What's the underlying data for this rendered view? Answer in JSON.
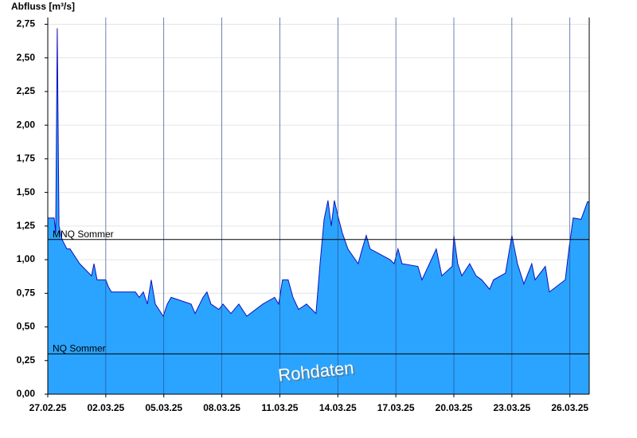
{
  "chart_data": {
    "type": "area",
    "y_label": "Abfluss [m³/s]",
    "annotation": "Rohdaten",
    "color": "#2ba4ff",
    "line_color": "#1010c0",
    "grid": true,
    "x": [
      0,
      0.33,
      0.41,
      0.49,
      0.58,
      0.74,
      0.99,
      1.15,
      1.65,
      2.26,
      2.39,
      2.55,
      3.0,
      3.13,
      3.29,
      4.53,
      4.73,
      4.94,
      5.15,
      5.35,
      5.56,
      5.97,
      6.18,
      6.38,
      7.41,
      7.62,
      8.03,
      8.23,
      8.44,
      8.85,
      9.06,
      9.47,
      9.88,
      10.29,
      11.12,
      11.73,
      11.94,
      12.14,
      12.43,
      12.68,
      12.97,
      13.38,
      13.87,
      14.08,
      14.29,
      14.49,
      14.66,
      14.82,
      15.03,
      15.23,
      15.52,
      16.05,
      16.26,
      16.47,
      16.67,
      17.7,
      17.91,
      18.11,
      18.32,
      19.14,
      19.35,
      20.09,
      20.38,
      20.91,
      21.0,
      21.2,
      21.41,
      21.82,
      22.15,
      22.44,
      22.85,
      23.05,
      23.67,
      24.0,
      24.29,
      24.62,
      25.03,
      25.2,
      25.73,
      25.94,
      26.76,
      26.97,
      27.17,
      27.58,
      27.91,
      28
    ],
    "values": [
      1.31,
      1.31,
      1.2,
      2.72,
      1.25,
      1.15,
      1.08,
      1.08,
      0.97,
      0.88,
      0.97,
      0.85,
      0.85,
      0.8,
      0.76,
      0.76,
      0.72,
      0.76,
      0.67,
      0.85,
      0.67,
      0.58,
      0.67,
      0.72,
      0.67,
      0.6,
      0.72,
      0.76,
      0.67,
      0.63,
      0.67,
      0.6,
      0.67,
      0.58,
      0.67,
      0.72,
      0.67,
      0.85,
      0.85,
      0.72,
      0.63,
      0.67,
      0.6,
      0.97,
      1.3,
      1.44,
      1.25,
      1.44,
      1.31,
      1.2,
      1.08,
      0.97,
      1.08,
      1.18,
      1.08,
      1.0,
      0.97,
      1.08,
      0.97,
      0.95,
      0.85,
      1.08,
      0.88,
      0.95,
      1.18,
      0.97,
      0.88,
      0.97,
      0.88,
      0.85,
      0.78,
      0.85,
      0.9,
      1.18,
      0.97,
      0.82,
      0.97,
      0.85,
      0.95,
      0.76,
      0.85,
      1.1,
      1.31,
      1.3,
      1.43,
      1.43
    ],
    "xlim": [
      0,
      28
    ],
    "xticks": [
      {
        "value": 0,
        "label": "27.02.25"
      },
      {
        "value": 3,
        "label": "02.03.25"
      },
      {
        "value": 6,
        "label": "05.03.25"
      },
      {
        "value": 9,
        "label": "08.03.25"
      },
      {
        "value": 12,
        "label": "11.03.25"
      },
      {
        "value": 15,
        "label": "14.03.25"
      },
      {
        "value": 18,
        "label": "17.03.25"
      },
      {
        "value": 21,
        "label": "20.03.25"
      },
      {
        "value": 24,
        "label": "23.03.25"
      },
      {
        "value": 27,
        "label": "26.03.25"
      }
    ],
    "ylim": [
      0,
      2.8
    ],
    "yticks": [
      {
        "value": 0,
        "label": "0,00"
      },
      {
        "value": 0.25,
        "label": "0,25"
      },
      {
        "value": 0.5,
        "label": "0,50"
      },
      {
        "value": 0.75,
        "label": "0,75"
      },
      {
        "value": 1,
        "label": "1,00"
      },
      {
        "value": 1.25,
        "label": "1,25"
      },
      {
        "value": 1.5,
        "label": "1,50"
      },
      {
        "value": 1.75,
        "label": "1,75"
      },
      {
        "value": 2,
        "label": "2,00"
      },
      {
        "value": 2.25,
        "label": "2,25"
      },
      {
        "value": 2.5,
        "label": "2,50"
      },
      {
        "value": 2.75,
        "label": "2,75"
      }
    ],
    "reference_lines": [
      {
        "label": "MNQ Sommer",
        "value": 1.15
      },
      {
        "label": "NQ Sommer",
        "value": 0.3
      }
    ]
  }
}
